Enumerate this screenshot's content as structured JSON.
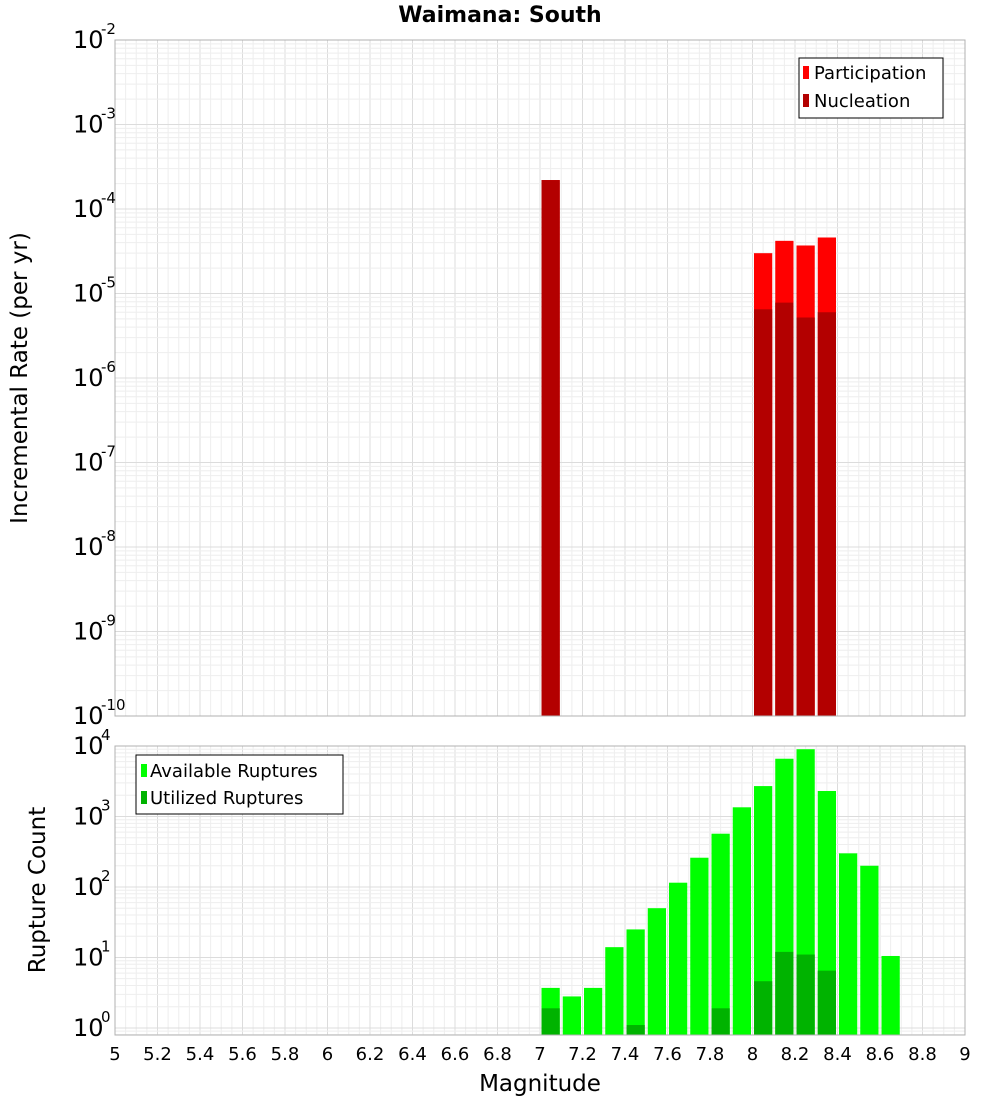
{
  "colors": {
    "participation": "#ff0000",
    "nucleation": "#b30000",
    "available": "#00ff00",
    "utilized": "#00b300",
    "grid_minor": "#eeeeee",
    "grid_major": "#dcdcdc",
    "frame": "#b0b0b0"
  },
  "chart_data": [
    {
      "type": "bar",
      "title": "Waimana: South",
      "ylabel": "Incremental Rate (per yr)",
      "xlabel": "",
      "y_scale": "log",
      "ylim_exponents": [
        -10,
        -2
      ],
      "xlim": [
        5,
        9
      ],
      "bin_width": 0.1,
      "grid": true,
      "legend_position": "top-right",
      "y_tick_exponents": [
        -10,
        -9,
        -8,
        -7,
        -6,
        -5,
        -4,
        -3,
        -2
      ],
      "series": [
        {
          "name": "Participation",
          "color_key": "participation",
          "points": [
            {
              "x": 7.05,
              "y": 0.00022
            },
            {
              "x": 8.05,
              "y": 3e-05
            },
            {
              "x": 8.15,
              "y": 4.2e-05
            },
            {
              "x": 8.25,
              "y": 3.7e-05
            },
            {
              "x": 8.35,
              "y": 4.6e-05
            }
          ]
        },
        {
          "name": "Nucleation",
          "color_key": "nucleation",
          "points": [
            {
              "x": 7.05,
              "y": 0.00022
            },
            {
              "x": 8.05,
              "y": 6.5e-06
            },
            {
              "x": 8.15,
              "y": 7.8e-06
            },
            {
              "x": 8.25,
              "y": 5.2e-06
            },
            {
              "x": 8.35,
              "y": 6e-06
            }
          ]
        }
      ]
    },
    {
      "type": "bar",
      "title": "",
      "ylabel": "Rupture Count",
      "xlabel": "Magnitude",
      "y_scale": "log",
      "ylim_exponents": [
        -0.1,
        4
      ],
      "xlim": [
        5,
        9
      ],
      "bin_width": 0.1,
      "grid": true,
      "legend_position": "top-left",
      "y_tick_exponents": [
        0,
        1,
        2,
        3,
        4
      ],
      "x_ticks": [
        "5",
        "5.2",
        "5.4",
        "5.6",
        "5.8",
        "6",
        "6.2",
        "6.4",
        "6.6",
        "6.8",
        "7",
        "7.2",
        "7.4",
        "7.6",
        "7.8",
        "8",
        "8.2",
        "8.4",
        "8.6",
        "8.8",
        "9"
      ],
      "series": [
        {
          "name": "Available Ruptures",
          "color_key": "available",
          "points": [
            {
              "x": 7.05,
              "y": 3.7
            },
            {
              "x": 7.15,
              "y": 2.8
            },
            {
              "x": 7.25,
              "y": 3.7
            },
            {
              "x": 7.35,
              "y": 14
            },
            {
              "x": 7.45,
              "y": 25
            },
            {
              "x": 7.55,
              "y": 50
            },
            {
              "x": 7.65,
              "y": 115
            },
            {
              "x": 7.75,
              "y": 260
            },
            {
              "x": 7.85,
              "y": 570
            },
            {
              "x": 7.95,
              "y": 1350
            },
            {
              "x": 8.05,
              "y": 2700
            },
            {
              "x": 8.15,
              "y": 6600
            },
            {
              "x": 8.25,
              "y": 9000
            },
            {
              "x": 8.35,
              "y": 2300
            },
            {
              "x": 8.45,
              "y": 300
            },
            {
              "x": 8.55,
              "y": 200
            },
            {
              "x": 8.65,
              "y": 10.5
            }
          ]
        },
        {
          "name": "Utilized Ruptures",
          "color_key": "utilized",
          "points": [
            {
              "x": 7.05,
              "y": 1.9
            },
            {
              "x": 7.45,
              "y": 1.1
            },
            {
              "x": 7.85,
              "y": 1.9
            },
            {
              "x": 8.05,
              "y": 4.6
            },
            {
              "x": 8.15,
              "y": 12
            },
            {
              "x": 8.25,
              "y": 11
            },
            {
              "x": 8.35,
              "y": 6.5
            }
          ]
        }
      ]
    }
  ]
}
